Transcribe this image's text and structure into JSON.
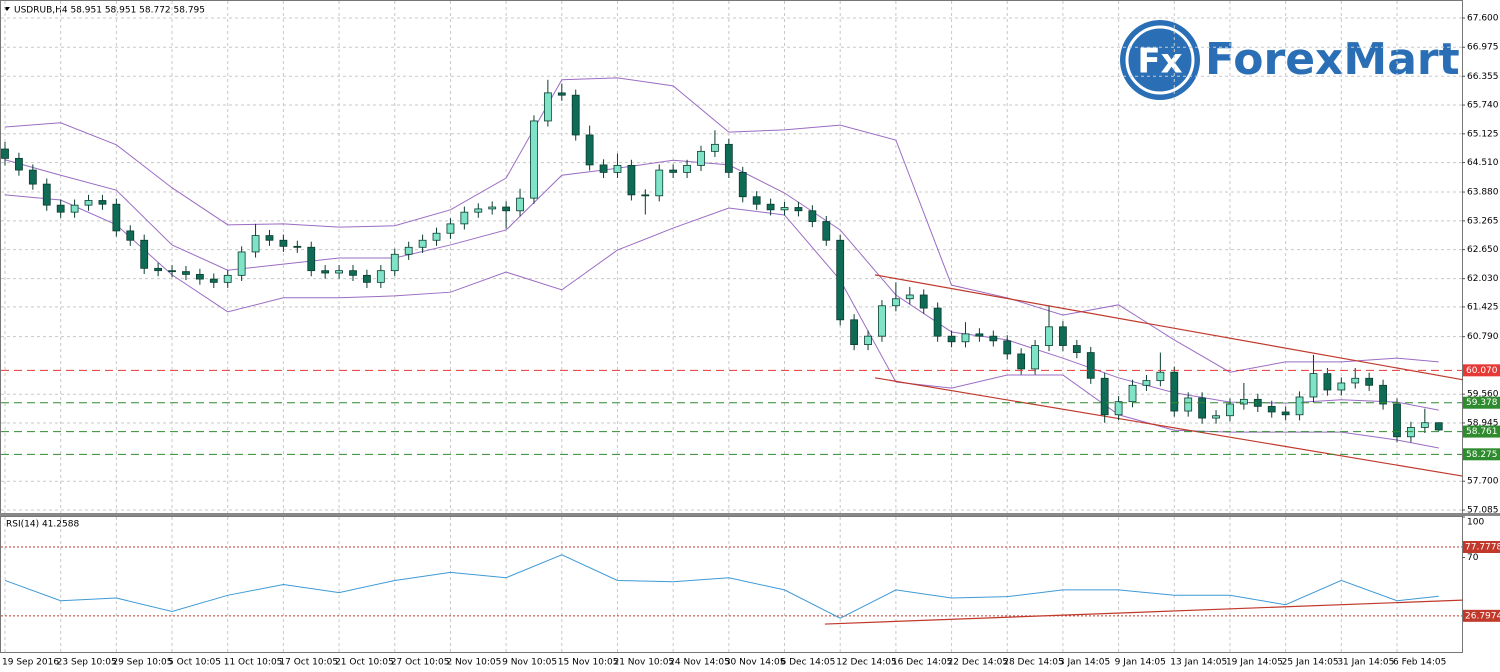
{
  "logo": {
    "icon": "Fx",
    "text": "ForexMart"
  },
  "chart_data": [
    {
      "type": "candlestick",
      "title": "USDRUB,H4  58.951 58.951 58.772 58.795",
      "categories": [
        "19 Sep 2016",
        null,
        null,
        null,
        "23 Sep 10:05",
        null,
        null,
        null,
        "29 Sep 10:05",
        null,
        null,
        null,
        "5 Oct 10:05",
        null,
        null,
        null,
        "11 Oct 10:05",
        null,
        null,
        null,
        "17 Oct 10:05",
        null,
        null,
        null,
        "21 Oct 10:05",
        null,
        null,
        null,
        "27 Oct 10:05",
        null,
        null,
        null,
        "2 Nov 10:05",
        null,
        null,
        null,
        "9 Nov 10:05",
        null,
        null,
        null,
        "15 Nov 10:05",
        null,
        null,
        null,
        "21 Nov 10:05",
        null,
        null,
        null,
        "24 Nov 14:05",
        null,
        null,
        null,
        "30 Nov 14:05",
        null,
        null,
        null,
        "6 Dec 14:05",
        null,
        null,
        null,
        "12 Dec 14:05",
        null,
        null,
        null,
        "16 Dec 14:05",
        null,
        null,
        null,
        "22 Dec 14:05",
        null,
        null,
        null,
        "28 Dec 14:05",
        null,
        null,
        null,
        "3 Jan 14:05",
        null,
        null,
        null,
        "9 Jan 14:05",
        null,
        null,
        null,
        "13 Jan 14:05",
        null,
        null,
        null,
        "19 Jan 14:05",
        null,
        null,
        null,
        "25 Jan 14:05",
        null,
        null,
        null,
        "31 Jan 14:05",
        null,
        null,
        null,
        "6 Feb 14:05",
        null,
        null,
        null
      ],
      "candles": [
        [
          64.8,
          64.95,
          64.45,
          64.6
        ],
        [
          64.6,
          64.72,
          64.23,
          64.35
        ],
        [
          64.35,
          64.47,
          63.93,
          64.05
        ],
        [
          64.05,
          64.17,
          63.48,
          63.6
        ],
        [
          63.6,
          63.72,
          63.33,
          63.45
        ],
        [
          63.45,
          63.72,
          63.33,
          63.6
        ],
        [
          63.6,
          63.82,
          63.48,
          63.7
        ],
        [
          63.7,
          63.82,
          63.5,
          63.62
        ],
        [
          63.62,
          63.74,
          62.93,
          63.05
        ],
        [
          63.05,
          63.17,
          62.73,
          62.85
        ],
        [
          62.85,
          62.97,
          62.13,
          62.25
        ],
        [
          62.25,
          62.37,
          62.08,
          62.2
        ],
        [
          62.2,
          62.32,
          62.06,
          62.18
        ],
        [
          62.18,
          62.3,
          62.0,
          62.12
        ],
        [
          62.12,
          62.24,
          61.9,
          62.02
        ],
        [
          62.02,
          62.14,
          61.83,
          61.95
        ],
        [
          61.95,
          62.22,
          61.83,
          62.1
        ],
        [
          62.1,
          62.72,
          61.98,
          62.6
        ],
        [
          62.6,
          63.2,
          62.48,
          62.95
        ],
        [
          62.95,
          63.07,
          62.73,
          62.85
        ],
        [
          62.85,
          62.97,
          62.6,
          62.72
        ],
        [
          62.72,
          62.84,
          62.58,
          62.7
        ],
        [
          62.7,
          62.82,
          62.08,
          62.2
        ],
        [
          62.2,
          62.32,
          62.03,
          62.15
        ],
        [
          62.15,
          62.32,
          62.03,
          62.2
        ],
        [
          62.2,
          62.32,
          61.98,
          62.1
        ],
        [
          62.1,
          62.22,
          61.83,
          61.95
        ],
        [
          61.95,
          62.32,
          61.83,
          62.2
        ],
        [
          62.2,
          62.67,
          62.08,
          62.55
        ],
        [
          62.55,
          62.82,
          62.43,
          62.7
        ],
        [
          62.7,
          62.97,
          62.58,
          62.85
        ],
        [
          62.85,
          63.12,
          62.73,
          63.0
        ],
        [
          63.0,
          63.32,
          62.88,
          63.2
        ],
        [
          63.2,
          63.57,
          63.08,
          63.45
        ],
        [
          63.45,
          63.64,
          63.33,
          63.52
        ],
        [
          63.52,
          63.68,
          63.4,
          63.56
        ],
        [
          63.56,
          63.68,
          63.1,
          63.48
        ],
        [
          63.48,
          63.95,
          63.36,
          63.75
        ],
        [
          63.75,
          65.52,
          63.63,
          65.4
        ],
        [
          65.4,
          66.28,
          65.28,
          66.0
        ],
        [
          66.0,
          66.2,
          65.83,
          65.95
        ],
        [
          65.95,
          66.07,
          64.98,
          65.1
        ],
        [
          65.1,
          65.3,
          64.34,
          64.46
        ],
        [
          64.46,
          64.58,
          64.18,
          64.3
        ],
        [
          64.3,
          64.7,
          64.18,
          64.45
        ],
        [
          64.45,
          64.57,
          63.7,
          63.82
        ],
        [
          63.82,
          63.94,
          63.4,
          63.8
        ],
        [
          63.8,
          64.47,
          63.68,
          64.35
        ],
        [
          64.35,
          64.47,
          64.18,
          64.3
        ],
        [
          64.3,
          64.57,
          64.18,
          64.45
        ],
        [
          64.45,
          64.87,
          64.33,
          64.75
        ],
        [
          64.75,
          65.2,
          64.63,
          64.9
        ],
        [
          64.9,
          65.02,
          64.18,
          64.3
        ],
        [
          64.3,
          64.42,
          63.66,
          63.78
        ],
        [
          63.78,
          63.9,
          63.5,
          63.62
        ],
        [
          63.62,
          63.74,
          63.38,
          63.5
        ],
        [
          63.5,
          63.67,
          63.38,
          63.55
        ],
        [
          63.55,
          63.67,
          63.36,
          63.48
        ],
        [
          63.48,
          63.6,
          63.13,
          63.25
        ],
        [
          63.25,
          63.37,
          62.73,
          62.85
        ],
        [
          62.85,
          62.97,
          61.03,
          61.15
        ],
        [
          61.15,
          61.27,
          60.5,
          60.62
        ],
        [
          60.62,
          60.92,
          60.5,
          60.8
        ],
        [
          60.8,
          61.57,
          60.68,
          61.45
        ],
        [
          61.45,
          61.95,
          61.33,
          61.6
        ],
        [
          61.6,
          61.85,
          61.48,
          61.68
        ],
        [
          61.68,
          61.8,
          61.28,
          61.4
        ],
        [
          61.4,
          61.52,
          60.68,
          60.8
        ],
        [
          60.8,
          60.92,
          60.56,
          60.68
        ],
        [
          60.68,
          61.1,
          60.56,
          60.85
        ],
        [
          60.85,
          60.97,
          60.68,
          60.8
        ],
        [
          60.8,
          60.92,
          60.58,
          60.7
        ],
        [
          60.7,
          60.82,
          60.3,
          60.42
        ],
        [
          60.42,
          60.54,
          59.98,
          60.1
        ],
        [
          60.1,
          60.72,
          59.98,
          60.6
        ],
        [
          60.6,
          61.45,
          60.48,
          61.0
        ],
        [
          61.0,
          61.12,
          60.48,
          60.6
        ],
        [
          60.6,
          60.72,
          60.33,
          60.45
        ],
        [
          60.45,
          60.57,
          59.78,
          59.9
        ],
        [
          59.9,
          60.02,
          58.95,
          59.12
        ],
        [
          59.12,
          59.52,
          59.0,
          59.4
        ],
        [
          59.4,
          59.87,
          59.28,
          59.75
        ],
        [
          59.75,
          59.97,
          59.63,
          59.85
        ],
        [
          59.85,
          60.45,
          59.73,
          60.03
        ],
        [
          60.03,
          60.15,
          59.08,
          59.2
        ],
        [
          59.2,
          59.6,
          59.08,
          59.48
        ],
        [
          59.48,
          59.6,
          58.93,
          59.05
        ],
        [
          59.05,
          59.22,
          58.93,
          59.1
        ],
        [
          59.1,
          59.47,
          58.98,
          59.35
        ],
        [
          59.35,
          59.8,
          59.23,
          59.45
        ],
        [
          59.45,
          59.57,
          59.18,
          59.3
        ],
        [
          59.3,
          59.42,
          59.06,
          59.18
        ],
        [
          59.18,
          59.3,
          59.0,
          59.12
        ],
        [
          59.12,
          59.62,
          59.0,
          59.5
        ],
        [
          59.5,
          60.4,
          59.38,
          60.0
        ],
        [
          60.0,
          60.12,
          59.53,
          59.65
        ],
        [
          59.65,
          59.92,
          59.53,
          59.8
        ],
        [
          59.8,
          60.12,
          59.68,
          59.9
        ],
        [
          59.9,
          60.02,
          59.63,
          59.75
        ],
        [
          59.75,
          59.87,
          59.23,
          59.35
        ],
        [
          59.35,
          59.47,
          58.53,
          58.65
        ],
        [
          58.65,
          58.97,
          58.53,
          58.85
        ],
        [
          58.85,
          59.25,
          58.73,
          58.95
        ],
        [
          58.951,
          58.951,
          58.772,
          58.795
        ]
      ],
      "bull_color": "#7fe3c8",
      "bear_color": "#0e6b55",
      "wick_color": "#0b3d30",
      "ylim": [
        57.085,
        67.6
      ],
      "yticks": [
        {
          "value": 67.6,
          "label": "67.600"
        },
        {
          "value": 66.975,
          "label": "66.975"
        },
        {
          "value": 66.355,
          "label": "66.355"
        },
        {
          "value": 65.74,
          "label": "65.740"
        },
        {
          "value": 65.125,
          "label": "65.125"
        },
        {
          "value": 64.51,
          "label": "64.510"
        },
        {
          "value": 63.88,
          "label": "63.880"
        },
        {
          "value": 63.265,
          "label": "63.265"
        },
        {
          "value": 62.65,
          "label": "62.650"
        },
        {
          "value": 62.03,
          "label": "62.030"
        },
        {
          "value": 61.425,
          "label": "61.425"
        },
        {
          "value": 60.79,
          "label": "60.790"
        },
        {
          "value": 59.56,
          "label": "59.560"
        },
        {
          "value": 58.945,
          "label": "58.945"
        },
        {
          "value": 57.7,
          "label": "57.700"
        },
        {
          "value": 57.085,
          "label": "57.085"
        }
      ],
      "grid": true,
      "band_color": "#9b6cc4",
      "bands": [
        {
          "x": [
            0,
            4,
            8,
            12,
            16,
            20,
            24,
            28,
            32,
            36,
            40,
            44,
            48,
            52,
            56,
            60,
            64,
            68,
            72,
            76,
            80,
            84,
            88,
            92,
            96,
            100,
            103
          ],
          "values": [
            65.27,
            65.36,
            64.89,
            63.97,
            63.18,
            63.2,
            63.13,
            63.16,
            63.5,
            64.18,
            66.28,
            66.32,
            66.15,
            65.16,
            65.21,
            65.31,
            64.99,
            61.89,
            61.62,
            61.25,
            61.47,
            60.72,
            60.03,
            60.25,
            60.25,
            60.33,
            60.25
          ]
        },
        {
          "x": [
            0,
            4,
            8,
            12,
            16,
            20,
            24,
            28,
            32,
            36,
            40,
            44,
            48,
            52,
            56,
            60,
            64,
            68,
            72,
            76,
            80,
            84,
            88,
            92,
            96,
            100,
            103
          ],
          "values": [
            64.57,
            64.24,
            63.92,
            62.75,
            62.21,
            62.34,
            62.47,
            62.47,
            62.75,
            63.07,
            64.24,
            64.39,
            64.56,
            64.46,
            63.86,
            63.07,
            61.68,
            60.89,
            60.72,
            60.33,
            59.91,
            59.59,
            59.39,
            59.37,
            59.44,
            59.39,
            59.22
          ]
        },
        {
          "x": [
            0,
            4,
            8,
            12,
            16,
            20,
            24,
            28,
            32,
            36,
            40,
            44,
            48,
            52,
            56,
            60,
            64,
            68,
            72,
            76,
            80,
            84,
            88,
            92,
            96,
            100,
            103
          ],
          "values": [
            63.82,
            63.71,
            63.18,
            62.11,
            61.32,
            61.62,
            61.62,
            61.66,
            61.74,
            62.17,
            61.79,
            62.64,
            63.11,
            63.54,
            63.39,
            62.0,
            59.82,
            59.69,
            59.97,
            59.97,
            59.12,
            58.79,
            58.75,
            58.75,
            58.75,
            58.58,
            58.41
          ]
        }
      ],
      "channel_color": "#c0392b",
      "channel": [
        {
          "x": [
            62.5,
            104.7
          ],
          "values": [
            62.11,
            59.87
          ]
        },
        {
          "x": [
            62.5,
            104.7
          ],
          "values": [
            59.91,
            57.81
          ]
        }
      ],
      "levels": [
        {
          "value": 60.07,
          "label": "60.070",
          "color": "#e53935"
        },
        {
          "value": 59.378,
          "label": "59.378",
          "color": "#2e8b2e"
        },
        {
          "value": 58.761,
          "label": "58.761",
          "color": "#2e8b2e"
        },
        {
          "value": 58.275,
          "label": "58.275",
          "color": "#2e8b2e"
        }
      ]
    },
    {
      "type": "line",
      "title": "RSI(14) 41.2588",
      "series": [
        {
          "color": "#3d9ad6",
          "x": [
            0,
            4,
            8,
            12,
            16,
            20,
            24,
            28,
            32,
            36,
            40,
            44,
            48,
            52,
            56,
            60,
            64,
            68,
            72,
            76,
            80,
            84,
            88,
            92,
            96,
            100,
            103
          ],
          "values": [
            53,
            38,
            40,
            30,
            42,
            50,
            44,
            53,
            59,
            55,
            72,
            53,
            52,
            55,
            46,
            25,
            46,
            40,
            41,
            46,
            46,
            42,
            42,
            35,
            53,
            38,
            41.2588
          ]
        }
      ],
      "ylim": [
        0,
        100
      ],
      "yticks": [
        100,
        70
      ],
      "level_color": "#c0392b",
      "levels": [
        77.7778,
        26.7974
      ],
      "trend": {
        "x": [
          58.9,
          104.7
        ],
        "values": [
          20.7,
          38.4
        ]
      }
    }
  ]
}
